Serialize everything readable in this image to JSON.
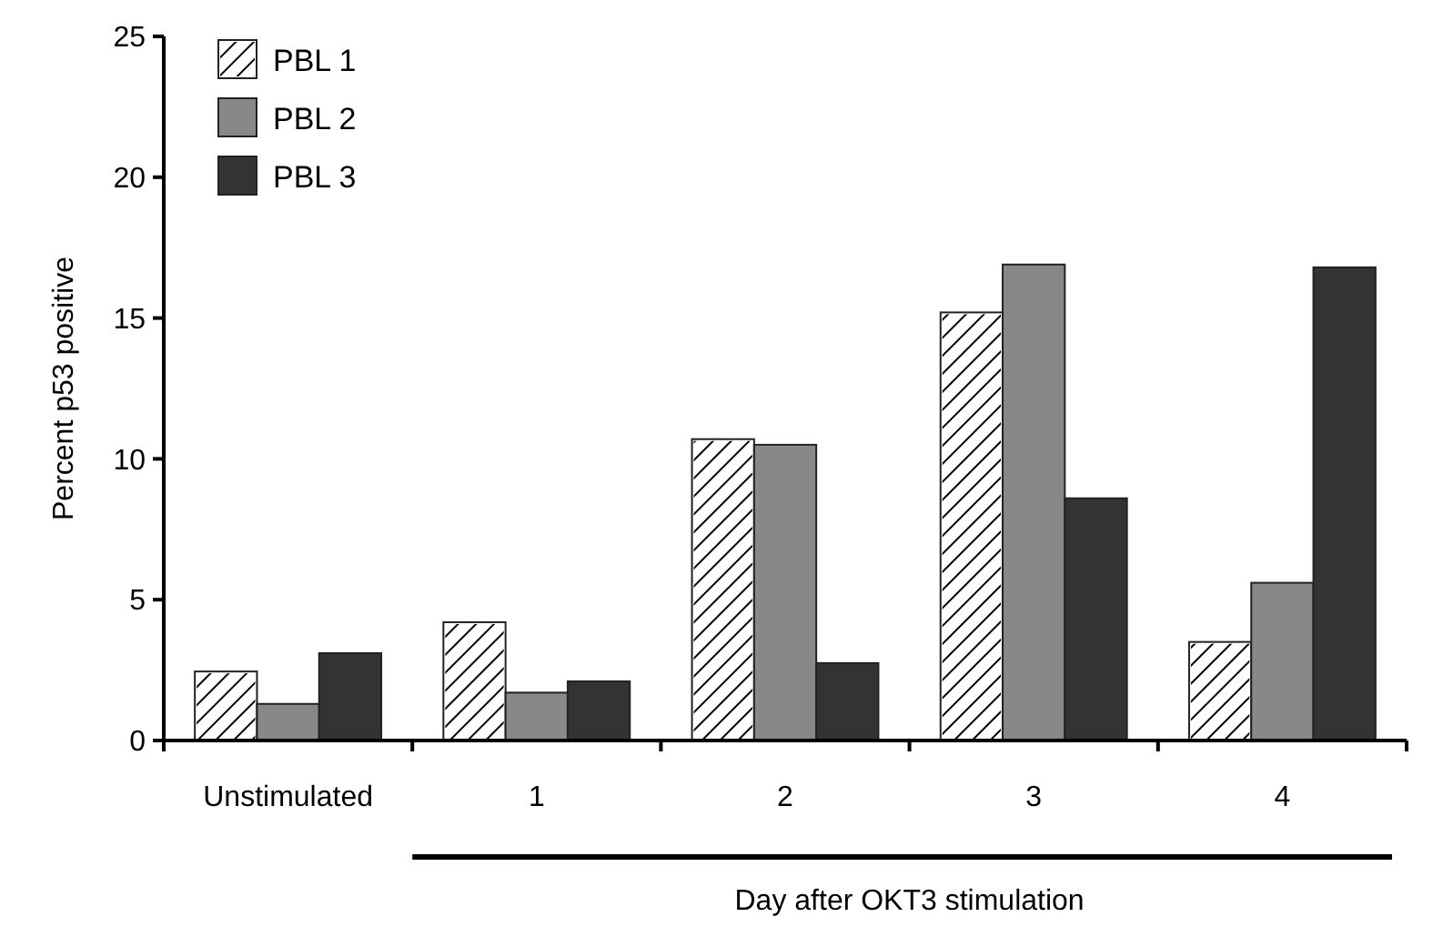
{
  "chart_data": {
    "type": "bar",
    "ylabel": "Percent p53 positive",
    "xlabel": "Day after OKT3 stimulation",
    "categories": [
      "Unstimulated",
      "1",
      "2",
      "3",
      "4"
    ],
    "series": [
      {
        "name": "PBL 1",
        "color": "#ffffff",
        "values": [
          2.45,
          4.2,
          10.7,
          15.2,
          3.5
        ]
      },
      {
        "name": "PBL 2",
        "color": "#888888",
        "values": [
          1.3,
          1.7,
          10.5,
          16.9,
          5.6
        ]
      },
      {
        "name": "PBL 3",
        "color": "#333333",
        "values": [
          3.1,
          2.1,
          2.75,
          8.6,
          16.8
        ]
      }
    ],
    "ylim": [
      0,
      25
    ],
    "yticks": [
      0,
      5,
      10,
      15,
      20,
      25
    ],
    "legend": "top left"
  }
}
